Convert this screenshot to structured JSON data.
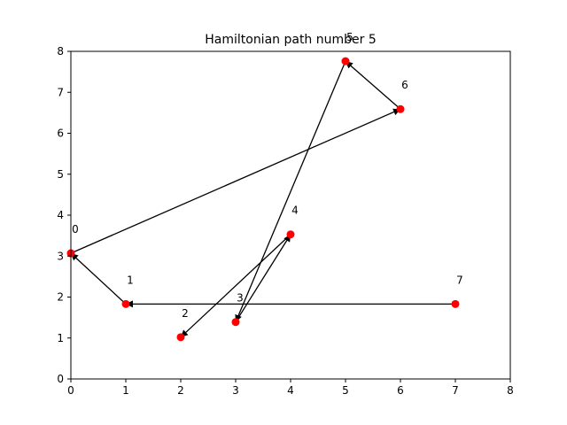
{
  "chart_data": {
    "type": "scatter",
    "title": "Hamiltonian path number 5",
    "xlabel": "",
    "ylabel": "",
    "xlim": [
      0,
      8
    ],
    "ylim": [
      0,
      8
    ],
    "xticks": [
      0,
      1,
      2,
      3,
      4,
      5,
      6,
      7,
      8
    ],
    "yticks": [
      0,
      1,
      2,
      3,
      4,
      5,
      6,
      7,
      8
    ],
    "grid": false,
    "point_color": "#ff0000",
    "edge_color": "#000000",
    "nodes": [
      {
        "label": "0",
        "x": 0,
        "y": 3.07
      },
      {
        "label": "1",
        "x": 1,
        "y": 1.83
      },
      {
        "label": "2",
        "x": 2,
        "y": 1.02
      },
      {
        "label": "3",
        "x": 3,
        "y": 1.39
      },
      {
        "label": "4",
        "x": 4,
        "y": 3.53
      },
      {
        "label": "5",
        "x": 5,
        "y": 7.76
      },
      {
        "label": "6",
        "x": 6,
        "y": 6.59
      },
      {
        "label": "7",
        "x": 7,
        "y": 1.83
      }
    ],
    "path": [
      7,
      1,
      0,
      6,
      5,
      3,
      4,
      2
    ]
  }
}
